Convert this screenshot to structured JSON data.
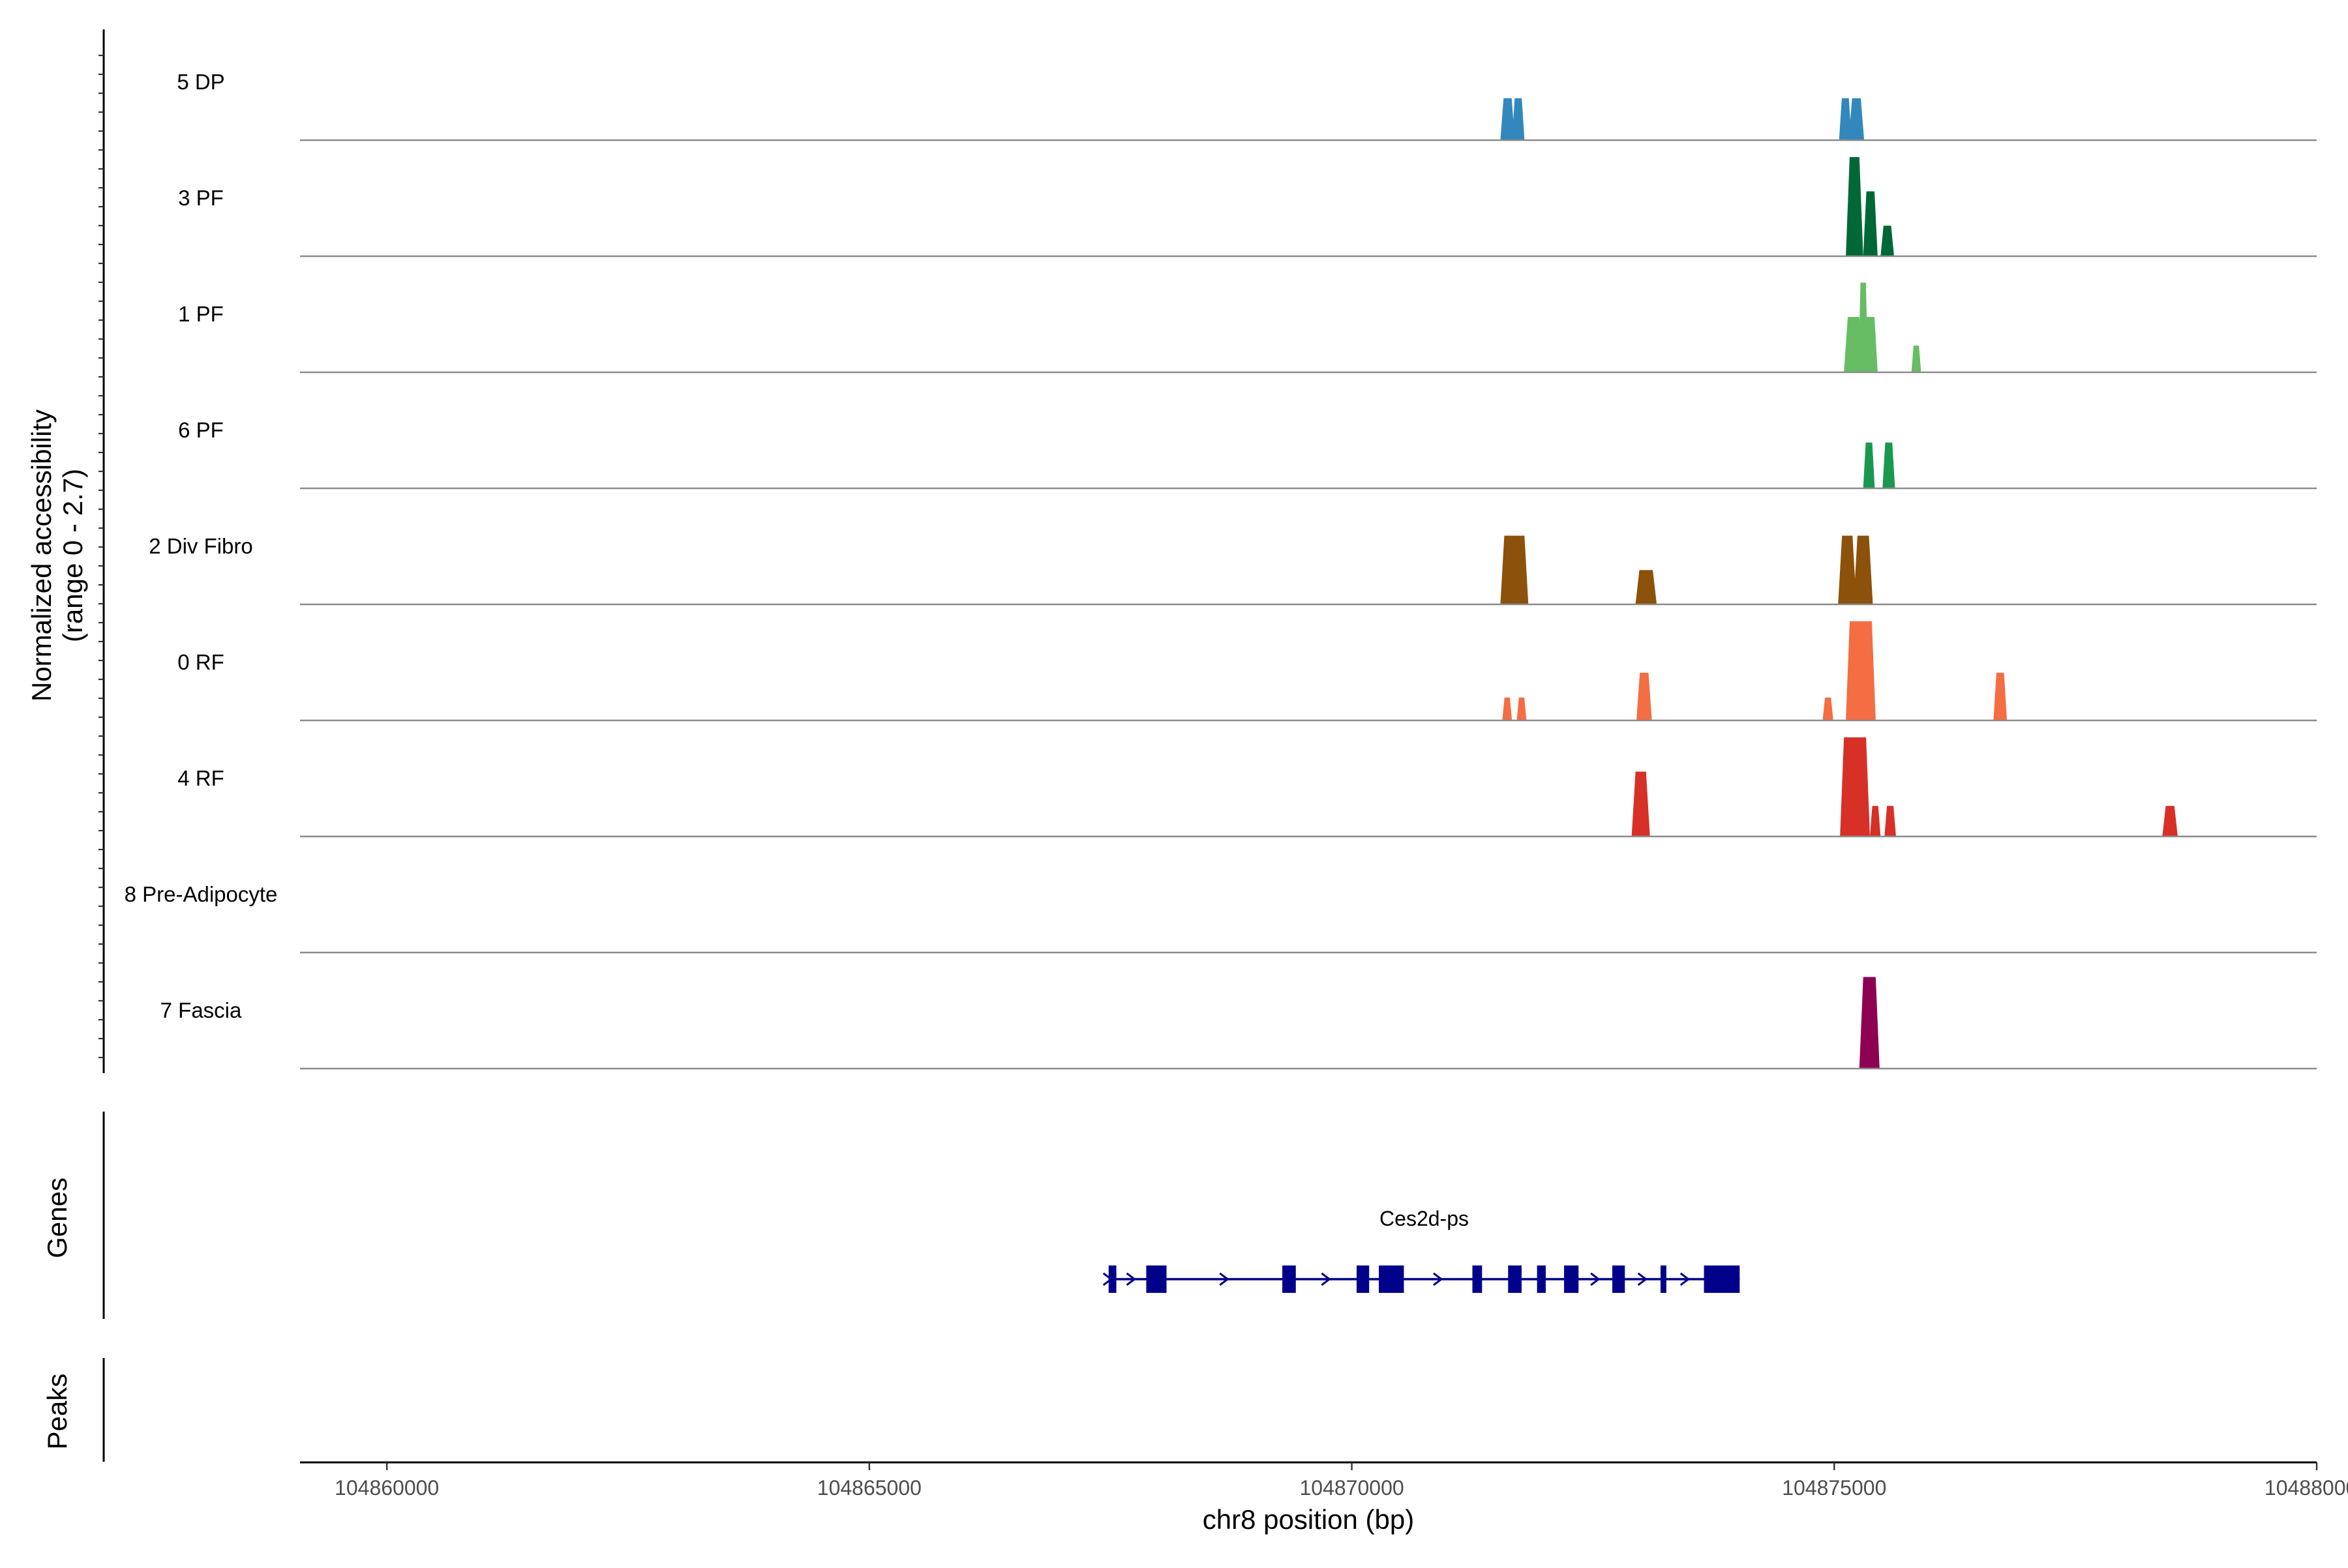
{
  "chart_data": {
    "type": "area",
    "subtype": "genome-coverage-tracks",
    "y_axis_title": "Normalized accessibility",
    "y_axis_subtitle": "(range 0 - 2.7)",
    "ylim": [
      0,
      2.7
    ],
    "x_axis_title": "chr8 position (bp)",
    "xlim": [
      104859100,
      104880000
    ],
    "x_ticks": [
      104860000,
      104865000,
      104870000,
      104875000,
      104880000
    ],
    "x_tick_labels": [
      "104860000",
      "104865000",
      "104870000",
      "104875000",
      "104880000"
    ],
    "grid": false,
    "tracks": [
      {
        "name": "5 DP",
        "color": "#3288BD",
        "peaks": [
          {
            "start": 104871540,
            "end": 104871690,
            "height": 1.1
          },
          {
            "start": 104871660,
            "end": 104871790,
            "height": 1.1
          },
          {
            "start": 104875050,
            "end": 104875180,
            "height": 1.1
          },
          {
            "start": 104875150,
            "end": 104875310,
            "height": 1.1
          }
        ]
      },
      {
        "name": "3 PF",
        "color": "#006837",
        "peaks": [
          {
            "start": 104875120,
            "end": 104875300,
            "height": 2.6
          },
          {
            "start": 104875300,
            "end": 104875450,
            "height": 1.7
          },
          {
            "start": 104875480,
            "end": 104875620,
            "height": 0.8
          }
        ]
      },
      {
        "name": "1 PF",
        "color": "#66BD63",
        "peaks": [
          {
            "start": 104875100,
            "end": 104875300,
            "height": 1.45
          },
          {
            "start": 104875250,
            "end": 104875350,
            "height": 2.35
          },
          {
            "start": 104875300,
            "end": 104875450,
            "height": 1.45
          },
          {
            "start": 104875800,
            "end": 104875900,
            "height": 0.7
          }
        ]
      },
      {
        "name": "6 PF",
        "color": "#1A9850",
        "peaks": [
          {
            "start": 104875300,
            "end": 104875420,
            "height": 1.2
          },
          {
            "start": 104875500,
            "end": 104875630,
            "height": 1.2
          }
        ]
      },
      {
        "name": "2 Div Fibro",
        "color": "#8C510A",
        "peaks": [
          {
            "start": 104871540,
            "end": 104871830,
            "height": 1.8
          },
          {
            "start": 104872940,
            "end": 104873160,
            "height": 0.9
          },
          {
            "start": 104875040,
            "end": 104875230,
            "height": 1.8
          },
          {
            "start": 104875200,
            "end": 104875400,
            "height": 1.8
          }
        ]
      },
      {
        "name": "0 RF",
        "color": "#F46D43",
        "peaks": [
          {
            "start": 104871560,
            "end": 104871660,
            "height": 0.6
          },
          {
            "start": 104871710,
            "end": 104871810,
            "height": 0.6
          },
          {
            "start": 104872950,
            "end": 104873110,
            "height": 1.25
          },
          {
            "start": 104874880,
            "end": 104874990,
            "height": 0.6
          },
          {
            "start": 104875120,
            "end": 104875430,
            "height": 2.6
          },
          {
            "start": 104876650,
            "end": 104876790,
            "height": 1.25
          }
        ]
      },
      {
        "name": "4 RF",
        "color": "#D73027",
        "peaks": [
          {
            "start": 104872900,
            "end": 104873090,
            "height": 1.7
          },
          {
            "start": 104875060,
            "end": 104875370,
            "height": 2.6
          },
          {
            "start": 104875370,
            "end": 104875480,
            "height": 0.8
          },
          {
            "start": 104875520,
            "end": 104875640,
            "height": 0.8
          },
          {
            "start": 104878400,
            "end": 104878560,
            "height": 0.8
          }
        ]
      },
      {
        "name": "8 Pre-Adipocyte",
        "color": "#FDAE61",
        "peaks": []
      },
      {
        "name": "7 Fascia",
        "color": "#8E0152",
        "peaks": [
          {
            "start": 104875260,
            "end": 104875470,
            "height": 2.4
          }
        ]
      }
    ],
    "genes_panel_title": "Genes",
    "peaks_panel_title": "Peaks",
    "gene": {
      "name": "Ces2d-ps",
      "color": "#00008B",
      "strand": "+",
      "start": 104867480,
      "end": 104874020,
      "exons": [
        [
          104867480,
          104867560
        ],
        [
          104867870,
          104868080
        ],
        [
          104869280,
          104869420
        ],
        [
          104870050,
          104870180
        ],
        [
          104870280,
          104870540
        ],
        [
          104871250,
          104871350
        ],
        [
          104871620,
          104871760
        ],
        [
          104871920,
          104872010
        ],
        [
          104872200,
          104872350
        ],
        [
          104872700,
          104872830
        ],
        [
          104873200,
          104873260
        ],
        [
          104873650,
          104874020
        ]
      ]
    }
  }
}
